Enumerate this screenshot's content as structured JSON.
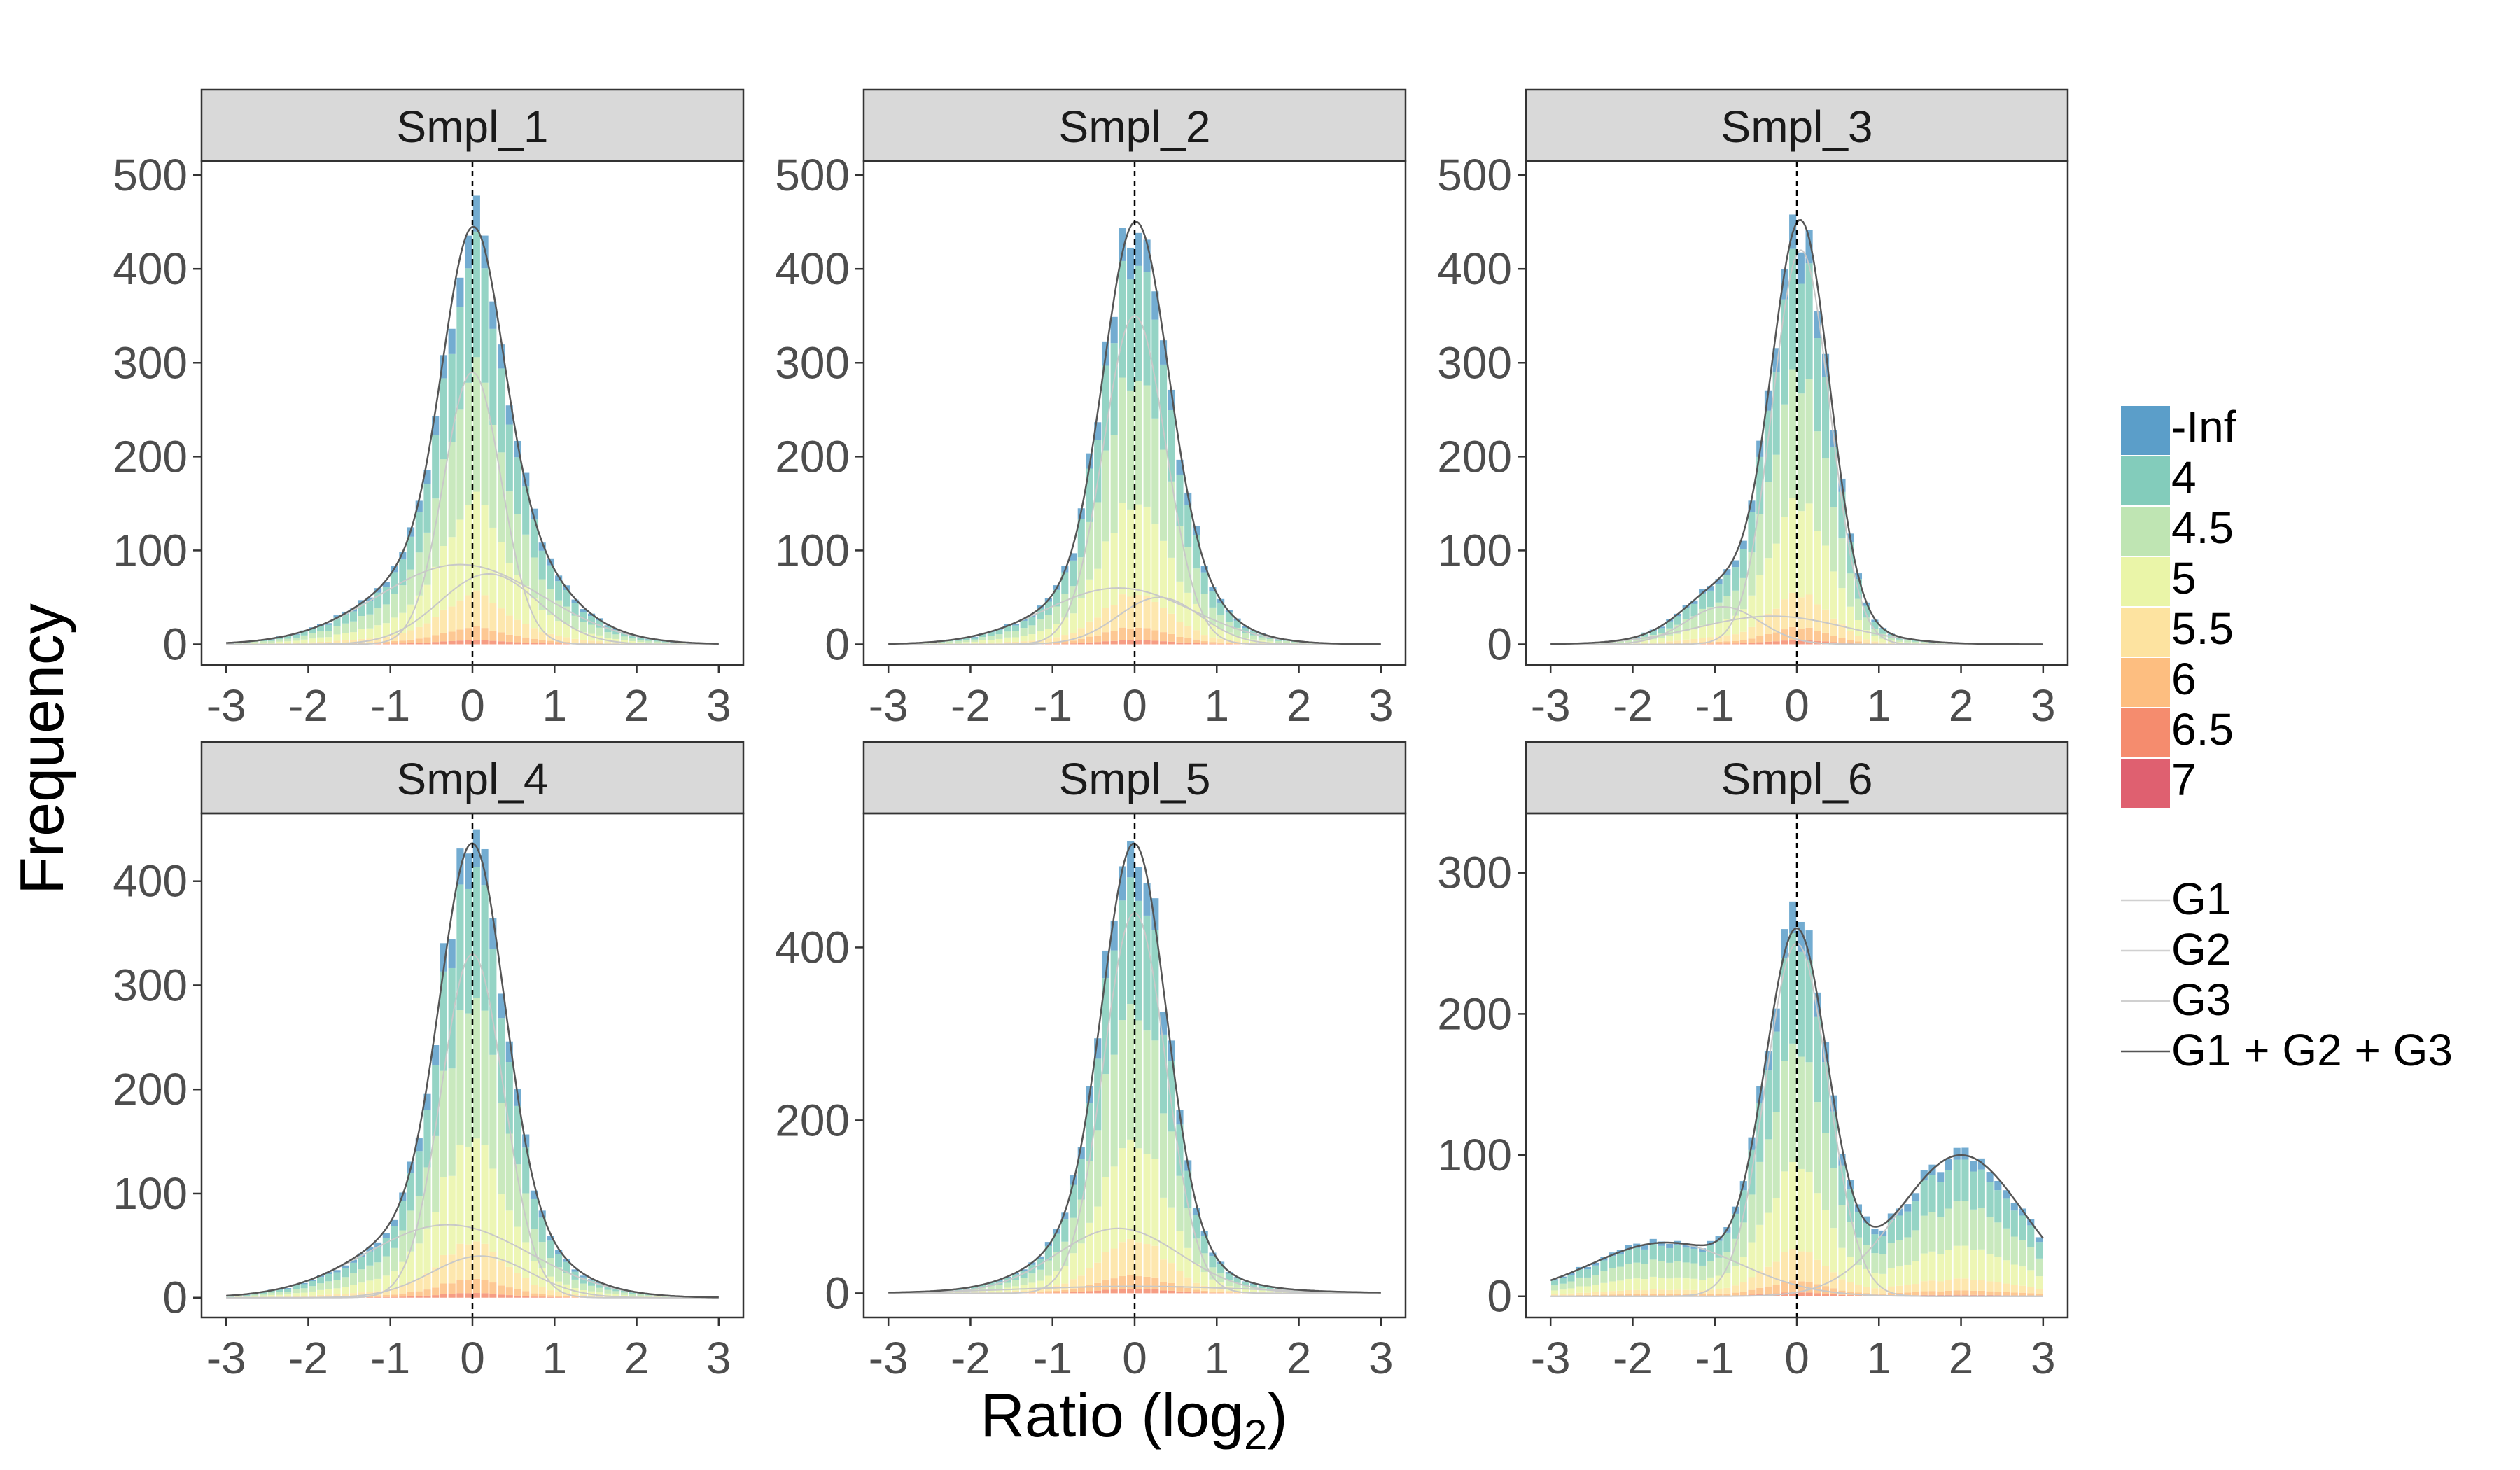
{
  "chart_data": {
    "type": "bar",
    "layout": "facet-grid 2 rows x 3 cols, histogram of ratios with fitted gaussian mixture",
    "xlabel_main": "Ratio (log",
    "xlabel_sub": "2",
    "xlabel_close": ")",
    "ylabel": "Frequency",
    "xlim": [
      -3.3,
      3.3
    ],
    "x_ticks": [
      -3,
      -2,
      -1,
      0,
      1,
      2,
      3
    ],
    "x_tick_labels": [
      "-3",
      "-2",
      "-1",
      "0",
      "1",
      "2",
      "3"
    ],
    "reference_line_x": 0,
    "bin_width": 0.1,
    "fill_legend": {
      "levels": [
        "-Inf",
        "4",
        "4.5",
        "5",
        "5.5",
        "6",
        "6.5",
        "7"
      ],
      "colors": [
        "#5b9ec9",
        "#83ccbb",
        "#bfe5b3",
        "#eaf5a8",
        "#fde3a0",
        "#fdbe80",
        "#f58c6e",
        "#df6070"
      ]
    },
    "line_legend": {
      "items": [
        "G1",
        "G2",
        "G3",
        "G1 + G2 + G3"
      ],
      "colors": [
        "#d0d0d0",
        "#d0d0d0",
        "#d0d0d0",
        "#555555"
      ]
    },
    "panels": [
      {
        "title": "Smpl_1",
        "ylim": [
          -22,
          515
        ],
        "y_ticks": [
          0,
          100,
          200,
          300,
          400,
          500
        ],
        "y_tick_labels": [
          "0",
          "100",
          "200",
          "300",
          "400",
          "500"
        ],
        "components": [
          {
            "name": "G1",
            "mu": 0.0,
            "sigma": 0.35,
            "amp": 290
          },
          {
            "name": "G2",
            "mu": -0.15,
            "sigma": 1.0,
            "amp": 85
          },
          {
            "name": "G3",
            "mu": 0.2,
            "sigma": 0.6,
            "amp": 75
          }
        ],
        "fractions": [
          0.08,
          0.28,
          0.3,
          0.22,
          0.08,
          0.03,
          0.01,
          0.0
        ]
      },
      {
        "title": "Smpl_2",
        "ylim": [
          -22,
          515
        ],
        "y_ticks": [
          0,
          100,
          200,
          300,
          400,
          500
        ],
        "y_tick_labels": [
          "0",
          "100",
          "200",
          "300",
          "400",
          "500"
        ],
        "components": [
          {
            "name": "G1",
            "mu": 0.0,
            "sigma": 0.38,
            "amp": 350
          },
          {
            "name": "G2",
            "mu": -0.2,
            "sigma": 0.9,
            "amp": 60
          },
          {
            "name": "G3",
            "mu": 0.3,
            "sigma": 0.5,
            "amp": 50
          }
        ],
        "fractions": [
          0.08,
          0.28,
          0.3,
          0.22,
          0.08,
          0.03,
          0.01,
          0.0
        ]
      },
      {
        "title": "Smpl_3",
        "ylim": [
          -22,
          515
        ],
        "y_ticks": [
          0,
          100,
          200,
          300,
          400,
          500
        ],
        "y_tick_labels": [
          "0",
          "100",
          "200",
          "300",
          "400",
          "500"
        ],
        "components": [
          {
            "name": "G1",
            "mu": 0.05,
            "sigma": 0.35,
            "amp": 420
          },
          {
            "name": "G2",
            "mu": -0.9,
            "sigma": 0.45,
            "amp": 40
          },
          {
            "name": "G3",
            "mu": -0.3,
            "sigma": 0.9,
            "amp": 30
          }
        ],
        "fractions": [
          0.08,
          0.28,
          0.3,
          0.22,
          0.08,
          0.03,
          0.01,
          0.0
        ]
      },
      {
        "title": "Smpl_4",
        "ylim": [
          -19,
          465
        ],
        "y_ticks": [
          0,
          100,
          200,
          300,
          400
        ],
        "y_tick_labels": [
          "0",
          "100",
          "200",
          "300",
          "400"
        ],
        "components": [
          {
            "name": "G1",
            "mu": 0.0,
            "sigma": 0.38,
            "amp": 330
          },
          {
            "name": "G2",
            "mu": -0.3,
            "sigma": 1.0,
            "amp": 70
          },
          {
            "name": "G3",
            "mu": 0.1,
            "sigma": 0.6,
            "amp": 40
          }
        ],
        "fractions": [
          0.08,
          0.28,
          0.3,
          0.22,
          0.08,
          0.03,
          0.01,
          0.0
        ]
      },
      {
        "title": "Smpl_5",
        "ylim": [
          -28,
          555
        ],
        "y_ticks": [
          0,
          200,
          400
        ],
        "y_tick_labels": [
          "0",
          "200",
          "400"
        ],
        "components": [
          {
            "name": "G1",
            "mu": 0.0,
            "sigma": 0.38,
            "amp": 440
          },
          {
            "name": "G2",
            "mu": -0.2,
            "sigma": 0.75,
            "amp": 75
          },
          {
            "name": "G3",
            "mu": 0.0,
            "sigma": 1.4,
            "amp": 8
          }
        ],
        "fractions": [
          0.08,
          0.28,
          0.3,
          0.22,
          0.08,
          0.03,
          0.01,
          0.0
        ]
      },
      {
        "title": "Smpl_6",
        "ylim": [
          -15,
          342
        ],
        "y_ticks": [
          0,
          100,
          200,
          300
        ],
        "y_tick_labels": [
          "0",
          "100",
          "200",
          "300"
        ],
        "components": [
          {
            "name": "G1",
            "mu": 0.0,
            "sigma": 0.38,
            "amp": 250
          },
          {
            "name": "G2",
            "mu": -1.6,
            "sigma": 0.9,
            "amp": 38
          },
          {
            "name": "G3",
            "mu": 2.0,
            "sigma": 0.75,
            "amp": 100
          }
        ],
        "fractions": [
          0.08,
          0.28,
          0.3,
          0.22,
          0.08,
          0.03,
          0.01,
          0.0
        ]
      }
    ]
  }
}
